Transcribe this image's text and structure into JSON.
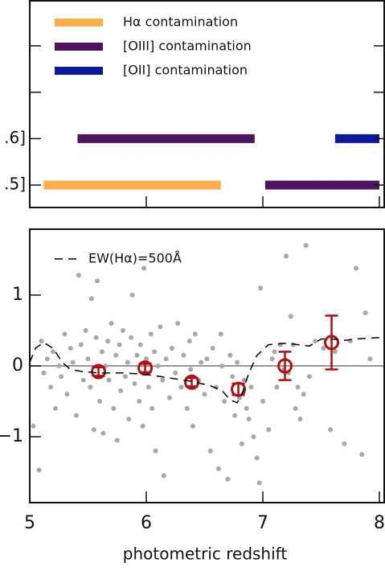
{
  "chart_data": [
    {
      "type": "bar",
      "categories": [
        null,
        null,
        ".6]",
        ".5]"
      ],
      "xlim": [
        5,
        8
      ],
      "xticks": [
        5,
        6,
        7,
        8
      ],
      "legend": "upper-left",
      "series": [
        {
          "name": "Hα contamination",
          "color": "#fdae4a",
          "values": [
            null,
            null,
            null,
            [
              5.12,
              6.64
            ]
          ]
        },
        {
          "name": "[OIII] contamination",
          "color": "#4e1460",
          "values": [
            null,
            null,
            [
              5.41,
              6.93
            ],
            [
              7.02,
              8.0
            ]
          ]
        },
        {
          "name": "[OII] contamination",
          "color": "#0c1a9c",
          "values": [
            null,
            null,
            [
              7.62,
              8.0
            ],
            null
          ]
        }
      ]
    },
    {
      "type": "scatter",
      "xlabel": "photometric redshift",
      "xlim": [
        5,
        8
      ],
      "xticks": [
        5,
        6,
        7,
        8
      ],
      "ylim": [
        -1.93,
        1.93
      ],
      "yticks": [
        {
          "value": -1,
          "label": "−1"
        },
        0,
        1
      ],
      "reference_line": 0,
      "legend": "upper-left",
      "series": [
        {
          "color": "#a8a8a8",
          "x": [
            5.03,
            5.08,
            5.1,
            5.12,
            5.15,
            5.18,
            5.2,
            5.22,
            5.25,
            5.27,
            5.3,
            5.32,
            5.35,
            5.37,
            5.4,
            5.42,
            5.44,
            5.46,
            5.48,
            5.5,
            5.52,
            5.53,
            5.55,
            5.57,
            5.58,
            5.6,
            5.62,
            5.63,
            5.65,
            5.67,
            5.68,
            5.7,
            5.72,
            5.74,
            5.75,
            5.77,
            5.78,
            5.8,
            5.82,
            5.84,
            5.85,
            5.87,
            5.88,
            5.9,
            5.92,
            5.94,
            5.95,
            5.97,
            5.98,
            6.0,
            6.02,
            6.04,
            6.05,
            6.07,
            6.08,
            6.1,
            6.12,
            6.14,
            6.15,
            6.17,
            6.2,
            6.22,
            6.25,
            6.27,
            6.3,
            6.32,
            6.35,
            6.37,
            6.38,
            6.4,
            6.42,
            6.45,
            6.47,
            6.5,
            6.52,
            6.55,
            6.57,
            6.6,
            6.62,
            6.64,
            6.65,
            6.67,
            6.7,
            6.72,
            6.74,
            6.76,
            6.78,
            6.8,
            6.82,
            6.84,
            6.86,
            6.88,
            6.9,
            6.92,
            6.95,
            6.97,
            6.98,
            7.0,
            7.05,
            7.08,
            7.1,
            7.12,
            7.15,
            7.18,
            7.2,
            7.22,
            7.24,
            7.26,
            7.28,
            7.3,
            7.32,
            7.35,
            7.37,
            7.4,
            7.45,
            7.52,
            7.58,
            7.62,
            7.7,
            7.75,
            7.8,
            7.85,
            7.88,
            7.92
          ],
          "values": [
            -0.85,
            -1.47,
            0.35,
            -0.1,
            0.1,
            -0.3,
            0.2,
            -0.6,
            0.0,
            -0.15,
            0.45,
            -0.4,
            0.25,
            0.05,
            -0.7,
            1.28,
            0.3,
            -0.2,
            0.5,
            0.1,
            -0.3,
            0.95,
            -0.9,
            0.4,
            1.2,
            -0.5,
            0.2,
            -0.95,
            0.0,
            0.35,
            -0.2,
            0.6,
            -0.6,
            0.15,
            -1.05,
            0.3,
            -0.35,
            0.5,
            -0.15,
            0.05,
            -0.75,
            0.4,
            1.0,
            -0.25,
            0.15,
            -0.5,
            0.3,
            -0.85,
            1.38,
            0.1,
            -0.3,
            0.45,
            -0.6,
            0.2,
            -1.2,
            0.0,
            0.55,
            -0.2,
            -1.55,
            0.1,
            -0.45,
            0.25,
            -0.1,
            0.6,
            -0.3,
            0.15,
            -0.6,
            0.35,
            -0.05,
            -0.85,
            0.45,
            -0.2,
            0.05,
            -0.4,
            0.1,
            -1.2,
            0.25,
            -0.3,
            -1.45,
            0.45,
            0.0,
            -0.5,
            -1.6,
            0.15,
            -0.15,
            -0.7,
            0.05,
            -0.45,
            -1.1,
            -0.2,
            -0.6,
            -0.75,
            -0.3,
            -1.0,
            -1.3,
            -1.65,
            1.1,
            -0.5,
            -0.9,
            0.1,
            0.2,
            -0.3,
            0.3,
            -0.05,
            1.55,
            -0.1,
            0.7,
            0.3,
            -0.6,
            -0.3,
            -0.75,
            -0.4,
            1.7,
            -0.15,
            0.35,
            0.25,
            -0.9,
            0.2,
            -1.1,
            0.35,
            1.38,
            -1.25,
            0.75,
            0.1
          ]
        },
        {
          "color": "#b01010",
          "x": [
            5.59,
            5.99,
            6.39,
            6.79,
            7.19,
            7.59
          ],
          "values": [
            -0.08,
            -0.03,
            -0.23,
            -0.33,
            0.0,
            0.33
          ],
          "errors": [
            0.06,
            0.06,
            0.06,
            0.08,
            0.2,
            0.38
          ]
        },
        {
          "name": "EW(Hα)=500Å",
          "type": "line",
          "dash": true,
          "color": "#000000",
          "x": [
            5.0,
            5.05,
            5.12,
            5.2,
            5.28,
            5.35,
            5.45,
            5.6,
            5.8,
            6.0,
            6.2,
            6.4,
            6.55,
            6.65,
            6.72,
            6.78,
            6.82,
            6.88,
            6.95,
            7.05,
            7.2,
            7.3,
            7.4,
            7.5,
            7.6,
            7.7,
            7.8,
            8.0
          ],
          "values": [
            0.05,
            0.25,
            0.33,
            0.25,
            0.05,
            -0.05,
            -0.08,
            -0.1,
            -0.1,
            -0.12,
            -0.17,
            -0.22,
            -0.28,
            -0.35,
            -0.48,
            -0.52,
            -0.4,
            -0.1,
            0.15,
            0.3,
            0.32,
            0.3,
            0.28,
            0.38,
            0.38,
            0.36,
            0.38,
            0.4
          ]
        }
      ]
    }
  ]
}
